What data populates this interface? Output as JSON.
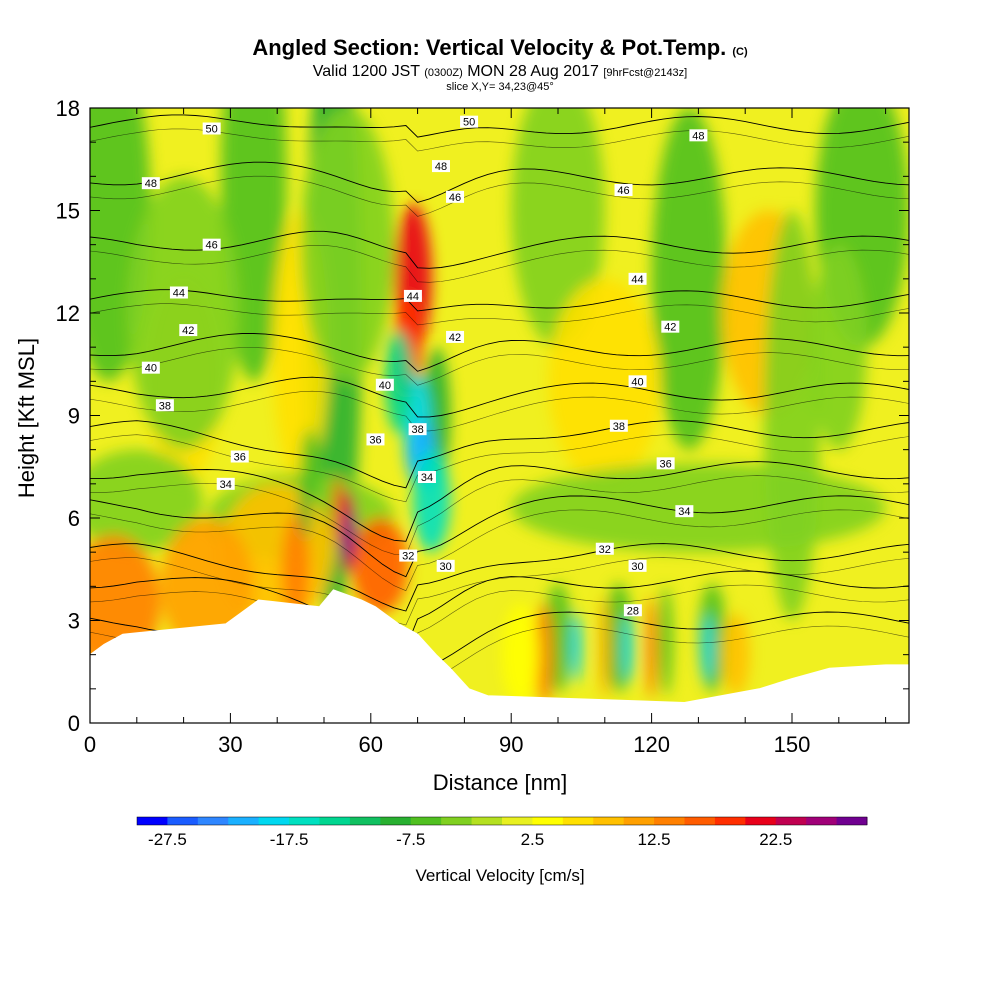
{
  "title": {
    "main": "Angled Section: Vertical Velocity & Pot.Temp.",
    "main_suffix": "(C)",
    "valid_prefix": "Valid 1200 JST",
    "valid_small": "(0300Z)",
    "valid_date": "MON 28 Aug 2017",
    "valid_fcst": "[9hrFcst@2143z]",
    "slice": "slice X,Y= 34,23@45°"
  },
  "chart_data": {
    "type": "heatmap",
    "description_fields": "filled contours of vertical velocity with overlaid potential temperature contour lines",
    "xlabel": "Distance [nm]",
    "ylabel": "Height [Kft MSL]",
    "xlim": [
      0,
      175
    ],
    "ylim": [
      0,
      18
    ],
    "xticks": [
      0,
      30,
      60,
      90,
      120,
      150
    ],
    "yticks": [
      0,
      3,
      6,
      9,
      12,
      15,
      18
    ],
    "colorbar": {
      "label": "Vertical Velocity [cm/s]",
      "tick_labels": [
        "-27.5",
        "-17.5",
        "-7.5",
        "2.5",
        "12.5",
        "22.5"
      ],
      "tick_values": [
        -27.5,
        -17.5,
        -7.5,
        2.5,
        12.5,
        22.5
      ],
      "bins": [
        -30,
        -27.5,
        -25,
        -22.5,
        -20,
        -17.5,
        -15,
        -12.5,
        -10,
        -7.5,
        -5,
        -2.5,
        0,
        2.5,
        5,
        7.5,
        10,
        12.5,
        15,
        17.5,
        20,
        22.5,
        25,
        27.5,
        30
      ],
      "colors": [
        "#0000ff",
        "#1a5cff",
        "#2e86ff",
        "#1ab0ff",
        "#00d8f0",
        "#00e0c0",
        "#00d690",
        "#10c060",
        "#28b030",
        "#50c020",
        "#80d020",
        "#b4e020",
        "#e8f020",
        "#ffff00",
        "#ffe000",
        "#ffc000",
        "#ffa000",
        "#ff8000",
        "#ff5c00",
        "#ff2e00",
        "#e8001a",
        "#c00050",
        "#a00078",
        "#700090"
      ]
    },
    "theta_contour_labels": [
      {
        "value": "50",
        "x": 26,
        "y": 17.4
      },
      {
        "value": "50",
        "x": 81,
        "y": 17.6
      },
      {
        "value": "48",
        "x": 13,
        "y": 15.8
      },
      {
        "value": "48",
        "x": 75,
        "y": 16.3
      },
      {
        "value": "48",
        "x": 130,
        "y": 17.2
      },
      {
        "value": "46",
        "x": 26,
        "y": 14.0
      },
      {
        "value": "46",
        "x": 78,
        "y": 15.4
      },
      {
        "value": "46",
        "x": 114,
        "y": 15.6
      },
      {
        "value": "44",
        "x": 19,
        "y": 12.6
      },
      {
        "value": "44",
        "x": 69,
        "y": 12.5
      },
      {
        "value": "44",
        "x": 117,
        "y": 13.0
      },
      {
        "value": "42",
        "x": 21,
        "y": 11.5
      },
      {
        "value": "42",
        "x": 78,
        "y": 11.3
      },
      {
        "value": "42",
        "x": 124,
        "y": 11.6
      },
      {
        "value": "40",
        "x": 13,
        "y": 10.4
      },
      {
        "value": "40",
        "x": 63,
        "y": 9.9
      },
      {
        "value": "40",
        "x": 117,
        "y": 10.0
      },
      {
        "value": "38",
        "x": 16,
        "y": 9.3
      },
      {
        "value": "38",
        "x": 70,
        "y": 8.6
      },
      {
        "value": "38",
        "x": 113,
        "y": 8.7
      },
      {
        "value": "36",
        "x": 32,
        "y": 7.8
      },
      {
        "value": "36",
        "x": 61,
        "y": 8.3
      },
      {
        "value": "36",
        "x": 123,
        "y": 7.6
      },
      {
        "value": "34",
        "x": 29,
        "y": 7.0
      },
      {
        "value": "34",
        "x": 72,
        "y": 7.2
      },
      {
        "value": "34",
        "x": 127,
        "y": 6.2
      },
      {
        "value": "32",
        "x": 68,
        "y": 4.9
      },
      {
        "value": "32",
        "x": 110,
        "y": 5.1
      },
      {
        "value": "30",
        "x": 76,
        "y": 4.6
      },
      {
        "value": "30",
        "x": 117,
        "y": 4.6
      },
      {
        "value": "28",
        "x": 116,
        "y": 3.3
      }
    ],
    "terrain_top_heights": [
      {
        "x": 0,
        "y": 2.0
      },
      {
        "x": 3,
        "y": 2.3
      },
      {
        "x": 7,
        "y": 2.6
      },
      {
        "x": 29,
        "y": 2.9
      },
      {
        "x": 32,
        "y": 3.2
      },
      {
        "x": 36,
        "y": 3.6
      },
      {
        "x": 49,
        "y": 3.4
      },
      {
        "x": 52,
        "y": 3.9
      },
      {
        "x": 58,
        "y": 3.6
      },
      {
        "x": 61,
        "y": 3.4
      },
      {
        "x": 63,
        "y": 3.2
      },
      {
        "x": 66,
        "y": 2.9
      },
      {
        "x": 70,
        "y": 2.6
      },
      {
        "x": 74,
        "y": 2.0
      },
      {
        "x": 77,
        "y": 1.6
      },
      {
        "x": 81,
        "y": 1.0
      },
      {
        "x": 85,
        "y": 0.8
      },
      {
        "x": 127,
        "y": 0.6
      },
      {
        "x": 143,
        "y": 1.0
      },
      {
        "x": 150,
        "y": 1.3
      },
      {
        "x": 158,
        "y": 1.6
      },
      {
        "x": 170,
        "y": 1.7
      },
      {
        "x": 175,
        "y": 1.7
      }
    ]
  }
}
